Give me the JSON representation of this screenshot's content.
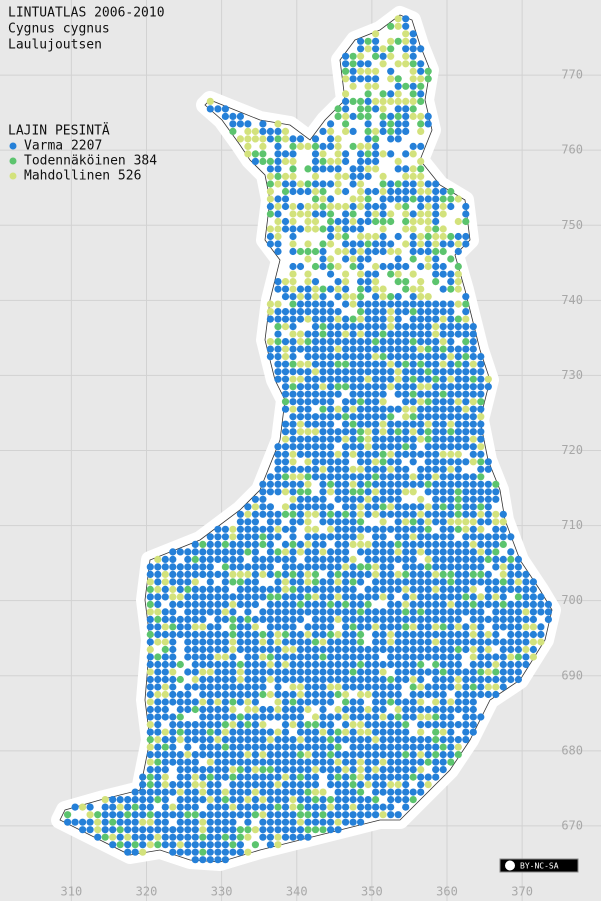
{
  "map": {
    "title": [
      "LINTUATLAS 2006-2010",
      "Cygnus cygnus",
      "Laulujoutsen"
    ],
    "legend": {
      "title": "LAJIN PESINTÄ",
      "items": [
        {
          "label": "Varma 2207",
          "color": "#2580d8"
        },
        {
          "label": "Todennäköinen 384",
          "color": "#5cc46e"
        },
        {
          "label": "Mahdollinen 526",
          "color": "#d3e27c"
        }
      ]
    },
    "xlim": [
      300.5,
      380.5
    ],
    "ylim": [
      660,
      780
    ],
    "xticks": [
      310,
      320,
      330,
      340,
      350,
      360,
      370
    ],
    "yticks": [
      670,
      680,
      690,
      700,
      710,
      720,
      730,
      740,
      750,
      760,
      770
    ],
    "grid": true
  },
  "license": "BY-NC-SA"
}
